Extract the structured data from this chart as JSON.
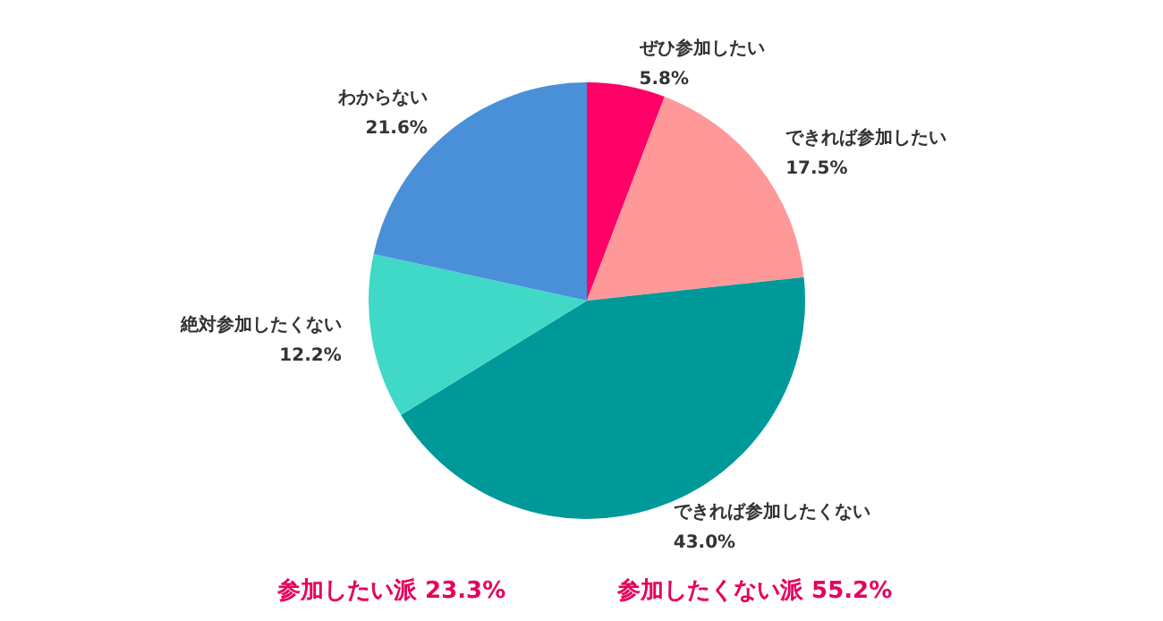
{
  "chart_data": {
    "type": "pie",
    "categories": [
      "ぜひ参加したい",
      "できれば参加したい",
      "できれば参加したくない",
      "絶対参加したくない",
      "わからない"
    ],
    "values": [
      5.8,
      17.5,
      43.0,
      12.2,
      21.6
    ],
    "value_labels": [
      "5.8%",
      "17.5%",
      "43.0%",
      "12.2%",
      "21.6%"
    ],
    "colors": [
      "#ff0066",
      "#ff9999",
      "#009999",
      "#40d9c8",
      "#4a90d9"
    ],
    "legend": false,
    "annotations": [
      "参加したい派 23.3%",
      "参加したくない派 55.2%"
    ]
  }
}
